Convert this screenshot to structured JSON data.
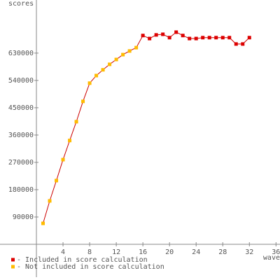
{
  "chart_data": {
    "type": "line",
    "y_label": "scores",
    "x_label": "wave",
    "x": [
      1,
      2,
      3,
      4,
      5,
      6,
      7,
      8,
      9,
      10,
      11,
      12,
      13,
      14,
      15,
      16,
      17,
      18,
      19,
      20,
      21,
      22,
      23,
      24,
      25,
      26,
      27,
      28,
      29,
      30,
      31,
      32
    ],
    "series": [
      {
        "name": "- Included in score calculation",
        "color": "#dd0000",
        "values": [
          null,
          null,
          null,
          null,
          null,
          null,
          null,
          null,
          null,
          null,
          null,
          null,
          null,
          null,
          null,
          688000,
          678000,
          690000,
          692000,
          681000,
          699000,
          688000,
          678000,
          678000,
          681000,
          681000,
          681000,
          681000,
          681000,
          660000,
          660000,
          681000
        ]
      },
      {
        "name": "- Not included in score calculation",
        "color": "#ffbb00",
        "values": [
          69000,
          143000,
          210000,
          279000,
          342000,
          404000,
          471000,
          531000,
          556000,
          575000,
          593000,
          609000,
          625000,
          637000,
          648000,
          null,
          null,
          null,
          null,
          null,
          null,
          null,
          null,
          null,
          null,
          null,
          null,
          null,
          null,
          null,
          null,
          null
        ]
      }
    ],
    "line_color": "#cc0000",
    "xlim": [
      -5.47,
      36.6
    ],
    "ylim": [
      0,
      805000
    ],
    "xticks": [
      4,
      8,
      12,
      16,
      20,
      24,
      28,
      32,
      36
    ],
    "yticks": [
      90000,
      180000,
      270000,
      360000,
      450000,
      540000,
      630000
    ]
  }
}
